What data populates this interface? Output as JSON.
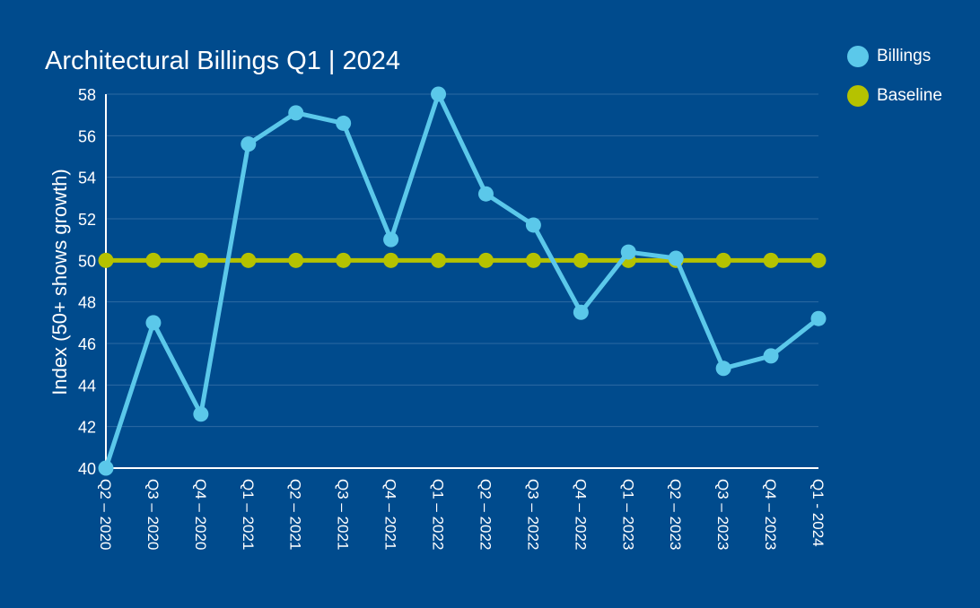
{
  "chart_data": {
    "type": "line",
    "title": "Architectural Billings Q1 | 2024",
    "ylabel": "Index (50+ shows growth)",
    "xlabel": "",
    "ylim": [
      40,
      58
    ],
    "yticks": [
      "40",
      "42",
      "44",
      "46",
      "48",
      "50",
      "52",
      "54",
      "56",
      "58"
    ],
    "categories": [
      "Q2 – 2020",
      "Q3 – 2020",
      "Q4 – 2020",
      "Q1 – 2021",
      "Q2 – 2021",
      "Q3 – 2021",
      "Q4 – 2021",
      "Q1 – 2022",
      "Q2 – 2022",
      "Q3 – 2022",
      "Q4 – 2022",
      "Q1 – 2023",
      "Q2 – 2023",
      "Q3 – 2023",
      "Q4 – 2023",
      "Q1 - 2024"
    ],
    "series": [
      {
        "name": "Billings",
        "color": "#5BC8EA",
        "values": [
          40.0,
          47.0,
          42.6,
          55.6,
          57.1,
          56.6,
          51.0,
          58.0,
          53.2,
          51.7,
          47.5,
          50.4,
          50.1,
          44.8,
          45.4,
          47.2
        ]
      },
      {
        "name": "Baseline",
        "color": "#B5C200",
        "values": [
          50,
          50,
          50,
          50,
          50,
          50,
          50,
          50,
          50,
          50,
          50,
          50,
          50,
          50,
          50,
          50
        ]
      }
    ],
    "grid": true,
    "legend": "top-right"
  }
}
